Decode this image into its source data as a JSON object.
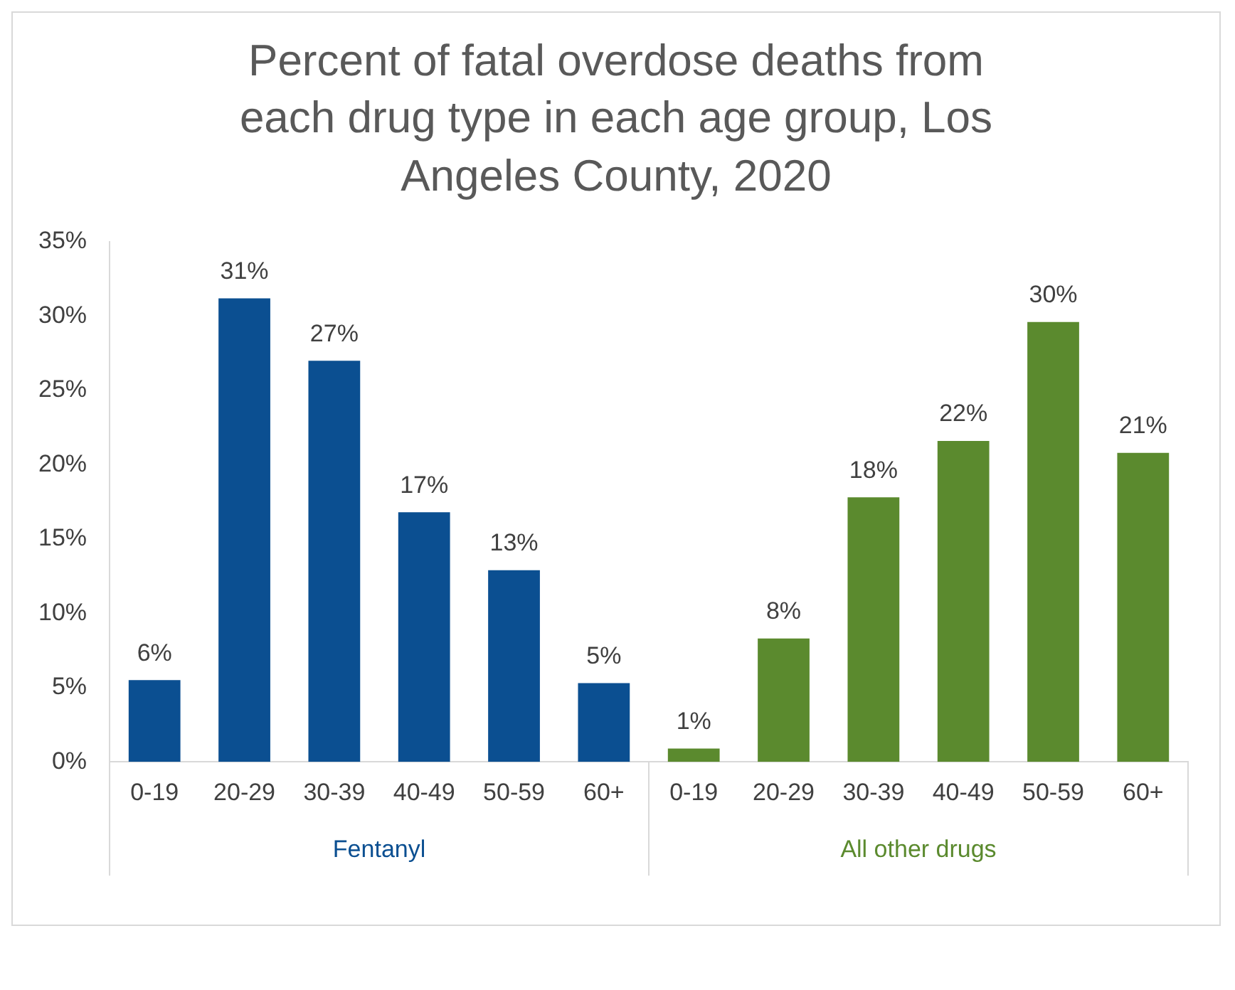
{
  "chart_data": {
    "type": "bar",
    "title": "Percent of fatal overdose deaths from each drug type in each age group, Los Angeles County, 2020",
    "categories": [
      "0-19",
      "20-29",
      "30-39",
      "40-49",
      "50-59",
      "60+",
      "0-19",
      "20-29",
      "30-39",
      "40-49",
      "50-59",
      "60+"
    ],
    "series": [
      {
        "name": "Fentanyl",
        "color": "#0b4f91",
        "values": [
          5.5,
          31.2,
          27.0,
          16.8,
          12.9,
          5.3,
          null,
          null,
          null,
          null,
          null,
          null
        ],
        "value_labels": [
          "6%",
          "31%",
          "27%",
          "17%",
          "13%",
          "5%",
          null,
          null,
          null,
          null,
          null,
          null
        ]
      },
      {
        "name": "All other drugs",
        "color": "#5b8a2e",
        "values": [
          null,
          null,
          null,
          null,
          null,
          null,
          0.9,
          8.3,
          17.8,
          21.6,
          29.6,
          20.8
        ],
        "value_labels": [
          null,
          null,
          null,
          null,
          null,
          null,
          "1%",
          "8%",
          "18%",
          "22%",
          "30%",
          "21%"
        ]
      }
    ],
    "ylim": [
      0,
      35
    ],
    "yticks": [
      {
        "value": 0,
        "label": "0%"
      },
      {
        "value": 5,
        "label": "5%"
      },
      {
        "value": 10,
        "label": "10%"
      },
      {
        "value": 15,
        "label": "15%"
      },
      {
        "value": 20,
        "label": "20%"
      },
      {
        "value": 25,
        "label": "25%"
      },
      {
        "value": 30,
        "label": "30%"
      },
      {
        "value": 35,
        "label": "35%"
      }
    ],
    "grid": false,
    "legend": false
  }
}
